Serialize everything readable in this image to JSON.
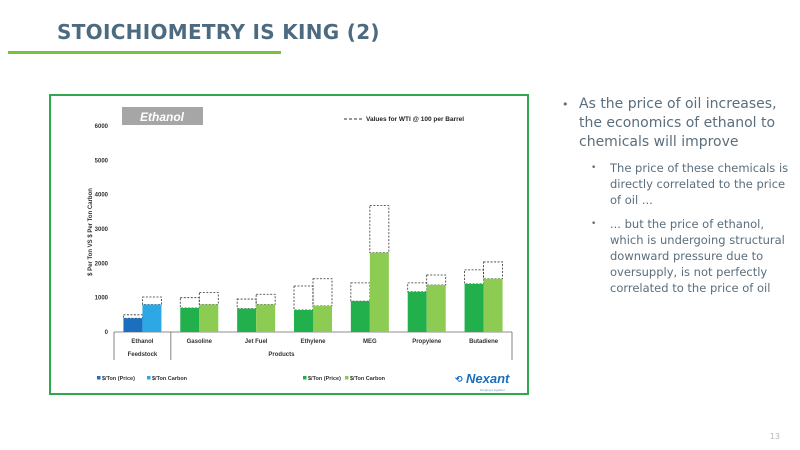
{
  "slide": {
    "title": "STOICHIOMETRY IS KING (2)",
    "page_number": "13",
    "bullets": [
      {
        "level": 1,
        "text": "As the price of oil increases, the economics of ethanol to chemicals will improve"
      },
      {
        "level": 2,
        "text": "The price of these chemicals is directly correlated to the price of oil ..."
      },
      {
        "level": 2,
        "text": "... but the price of ethanol, which is undergoing structural downward pressure due to oversupply, is not perfectly correlated to the price of oil"
      }
    ],
    "bullet_glyph": "•"
  },
  "chart_data": {
    "type": "bar",
    "title_badge": "Ethanol",
    "dashed_legend": "Values for WTI @ 100 per Barrel",
    "ylabel": "$ Per Ton VS $ Per Ton Carbon",
    "ylim": [
      0,
      6000
    ],
    "yticks": [
      0,
      1000,
      2000,
      3000,
      4000,
      5000,
      6000
    ],
    "categories": [
      "Ethanol",
      "Gasoline",
      "Jet Fuel",
      "Ethylene",
      "MEG",
      "Propylene",
      "Butadiene"
    ],
    "groups": [
      {
        "label": "Feedstock",
        "categories": [
          "Ethanol"
        ]
      },
      {
        "label": "Products",
        "categories": [
          "Gasoline",
          "Jet Fuel",
          "Ethylene",
          "MEG",
          "Propylene",
          "Butadiene"
        ]
      }
    ],
    "series": [
      {
        "name": "$/Ton (Price)",
        "values": [
          400,
          700,
          680,
          640,
          900,
          1170,
          1400
        ],
        "wti100_values": [
          500,
          1000,
          960,
          1340,
          1430,
          1430,
          1810
        ],
        "colors": {
          "feedstock": "#1a6fbf",
          "product": "#22b04c"
        }
      },
      {
        "name": "$/Ton Carbon",
        "values": [
          800,
          800,
          800,
          760,
          2310,
          1370,
          1550
        ],
        "wti100_values": [
          1020,
          1150,
          1100,
          1550,
          3680,
          1660,
          2040
        ],
        "colors": {
          "feedstock": "#2ea8e4",
          "product": "#8ccc52"
        }
      }
    ],
    "legends": {
      "feedstock": [
        "$/Ton (Price)",
        "$/Ton Carbon"
      ],
      "products": [
        "$/Ton (Price)",
        "$/Ton Carbon"
      ]
    },
    "logo": {
      "name": "Nexant",
      "tagline": "bringing it together"
    }
  }
}
